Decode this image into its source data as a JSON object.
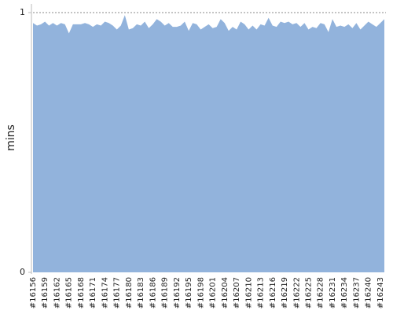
{
  "chart_data": {
    "type": "area",
    "y_label": "mins",
    "color": "#92b3dc",
    "categories": [
      "#16156",
      null,
      null,
      "#16159",
      null,
      null,
      "#16162",
      null,
      null,
      "#16165",
      null,
      null,
      "#16168",
      null,
      null,
      "#16171",
      null,
      null,
      "#16174",
      null,
      null,
      "#16177",
      null,
      null,
      "#16180",
      null,
      null,
      "#16183",
      null,
      null,
      "#16186",
      null,
      null,
      "#16189",
      null,
      null,
      "#16192",
      null,
      null,
      "#16195",
      null,
      null,
      "#16198",
      null,
      null,
      "#16201",
      null,
      null,
      "#16204",
      null,
      null,
      "#16207",
      null,
      null,
      "#16210",
      null,
      null,
      "#16213",
      null,
      null,
      "#16216",
      null,
      null,
      "#16219",
      null,
      null,
      "#16222",
      null,
      null,
      "#16225",
      null,
      null,
      "#16228",
      null,
      null,
      "#16231",
      null,
      null,
      "#16234",
      null,
      null,
      "#16237",
      null,
      null,
      "#16240",
      null,
      null,
      "#16243",
      null
    ],
    "values": [
      0.96,
      0.95,
      0.955,
      0.965,
      0.95,
      0.96,
      0.95,
      0.96,
      0.955,
      0.92,
      0.955,
      0.955,
      0.955,
      0.96,
      0.955,
      0.945,
      0.955,
      0.95,
      0.965,
      0.96,
      0.95,
      0.935,
      0.95,
      0.99,
      0.935,
      0.94,
      0.955,
      0.95,
      0.965,
      0.94,
      0.955,
      0.975,
      0.965,
      0.95,
      0.96,
      0.945,
      0.945,
      0.95,
      0.965,
      0.93,
      0.96,
      0.955,
      0.935,
      0.945,
      0.955,
      0.94,
      0.945,
      0.975,
      0.96,
      0.93,
      0.945,
      0.935,
      0.965,
      0.955,
      0.935,
      0.95,
      0.935,
      0.955,
      0.95,
      0.98,
      0.95,
      0.945,
      0.965,
      0.96,
      0.965,
      0.955,
      0.96,
      0.945,
      0.96,
      0.935,
      0.945,
      0.94,
      0.96,
      0.955,
      0.925,
      0.975,
      0.945,
      0.95,
      0.945,
      0.955,
      0.94,
      0.96,
      0.935,
      0.95,
      0.965,
      0.955,
      0.945,
      0.96,
      0.975
    ],
    "ylim": [
      0,
      1
    ],
    "yticks": [
      0,
      1
    ],
    "grid": true
  }
}
